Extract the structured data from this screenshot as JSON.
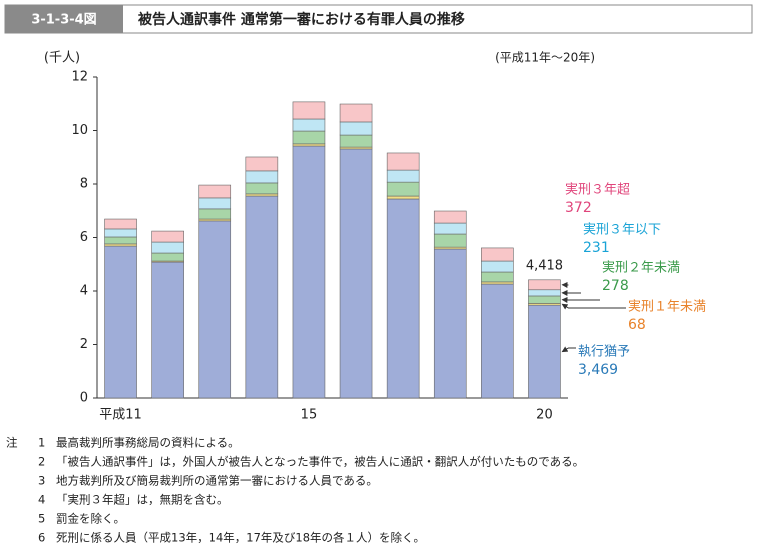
{
  "header": {
    "figure_no": "3-1-3-4図",
    "title": "被告人通訳事件 通常第一審における有罪人員の推移"
  },
  "chart_data": {
    "type": "stacked-bar",
    "y_label": "(千人)",
    "period": "(平成11年～20年)",
    "categories": [
      "平成11",
      null,
      null,
      null,
      "15",
      null,
      null,
      null,
      null,
      "20"
    ],
    "ylim": [
      0,
      12
    ],
    "yticks": [
      0,
      2,
      4,
      6,
      8,
      10,
      12
    ],
    "grid": false,
    "series": [
      {
        "name": "執行猶予",
        "color": "#9fadd8",
        "label_color": "#2a7ab8",
        "values": [
          5.68,
          5.08,
          6.62,
          7.55,
          9.42,
          9.31,
          7.44,
          5.57,
          4.26,
          3.469
        ],
        "value_labels": [
          null,
          null,
          null,
          null,
          null,
          null,
          null,
          null,
          null,
          "3,469"
        ]
      },
      {
        "name": "実刑１年未満",
        "color": "#f1de86",
        "label_color": "#e8822a",
        "values": [
          0.08,
          0.04,
          0.07,
          0.08,
          0.08,
          0.07,
          0.11,
          0.07,
          0.08,
          0.068
        ],
        "value_labels": [
          null,
          null,
          null,
          null,
          null,
          null,
          null,
          null,
          null,
          "68"
        ]
      },
      {
        "name": "実刑２年未満",
        "color": "#a8d5a8",
        "label_color": "#3a9a4a",
        "values": [
          0.26,
          0.3,
          0.38,
          0.41,
          0.48,
          0.45,
          0.52,
          0.49,
          0.37,
          0.278
        ],
        "value_labels": [
          null,
          null,
          null,
          null,
          null,
          null,
          null,
          null,
          null,
          "278"
        ]
      },
      {
        "name": "実刑３年以下",
        "color": "#bfe6f4",
        "label_color": "#19a3d6",
        "values": [
          0.3,
          0.41,
          0.41,
          0.45,
          0.45,
          0.49,
          0.45,
          0.41,
          0.41,
          0.231
        ],
        "value_labels": [
          null,
          null,
          null,
          null,
          null,
          null,
          null,
          null,
          null,
          "231"
        ]
      },
      {
        "name": "実刑３年超",
        "color": "#f8c6c8",
        "label_color": "#e0457b",
        "values": [
          0.37,
          0.41,
          0.48,
          0.52,
          0.64,
          0.67,
          0.64,
          0.45,
          0.49,
          0.372
        ],
        "value_labels": [
          null,
          null,
          null,
          null,
          null,
          null,
          null,
          null,
          null,
          "372"
        ]
      }
    ],
    "total": {
      "value": 4.418,
      "label": "4,418"
    }
  },
  "notes": {
    "label": "注",
    "items": [
      {
        "num": "1",
        "text": "最高裁判所事務総局の資料による。"
      },
      {
        "num": "2",
        "text": "「被告人通訳事件」は，外国人が被告人となった事件で，被告人に通訳・翻訳人が付いたものである。"
      },
      {
        "num": "3",
        "text": "地方裁判所及び簡易裁判所の通常第一審における人員である。"
      },
      {
        "num": "4",
        "text": "「実刑３年超」は，無期を含む。"
      },
      {
        "num": "5",
        "text": "罰金を除く。"
      },
      {
        "num": "6",
        "text": "死刑に係る人員（平成13年，14年，17年及び18年の各１人）を除く。"
      }
    ]
  }
}
